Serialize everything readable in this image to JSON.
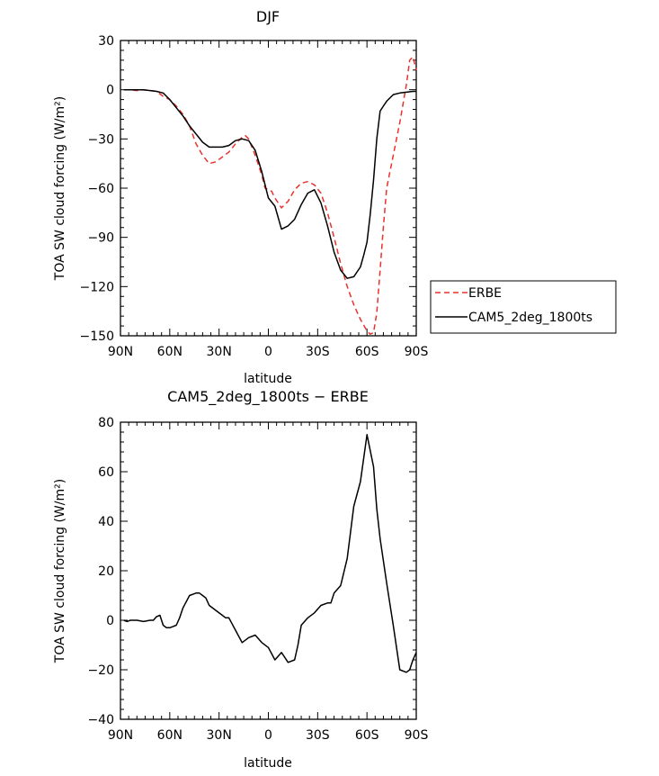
{
  "chart_data": [
    {
      "type": "line",
      "title": "DJF",
      "xlabel": "latitude",
      "ylabel": "TOA SW cloud forcing (W/m²)",
      "xlim": [
        90,
        -90
      ],
      "ylim": [
        -150,
        30
      ],
      "x_ticks": [
        90,
        60,
        30,
        0,
        -30,
        -60,
        -90
      ],
      "x_tick_labels": [
        "90N",
        "60N",
        "30N",
        "0",
        "30S",
        "60S",
        "90S"
      ],
      "y_ticks": [
        30,
        0,
        -30,
        -60,
        -90,
        -120,
        -150
      ],
      "y_tick_labels": [
        "30",
        "0",
        "−30",
        "−60",
        "−90",
        "−120",
        "−150"
      ],
      "legend_position": "outside-right",
      "series": [
        {
          "name": "ERBE",
          "color": "#e8322c",
          "dash": "dashed",
          "x": [
            88,
            84,
            80,
            76,
            72,
            68,
            64,
            60,
            56,
            52,
            48,
            44,
            40,
            36,
            32,
            28,
            24,
            20,
            16,
            14,
            12,
            8,
            4,
            2,
            0,
            -2,
            -4,
            -8,
            -12,
            -16,
            -20,
            -24,
            -28,
            -32,
            -36,
            -40,
            -44,
            -48,
            -52,
            -56,
            -60,
            -62,
            -64,
            -66,
            -68,
            -70,
            -72,
            -76,
            -80,
            -84,
            -86,
            -88,
            -90
          ],
          "values": [
            0,
            0,
            -0.5,
            0,
            -0.5,
            -1,
            -4,
            -6,
            -10,
            -15,
            -22,
            -33,
            -40,
            -45,
            -44,
            -41,
            -38,
            -33,
            -29,
            -28,
            -30,
            -40,
            -52,
            -60,
            -61,
            -62,
            -66,
            -72,
            -68,
            -61,
            -57,
            -56,
            -58,
            -63,
            -75,
            -90,
            -106,
            -120,
            -131,
            -140,
            -147,
            -149,
            -148,
            -136,
            -110,
            -84,
            -60,
            -40,
            -20,
            3,
            18,
            20,
            12
          ]
        },
        {
          "name": "CAM5_2deg_1800ts",
          "color": "#000000",
          "dash": "solid",
          "x": [
            88,
            84,
            80,
            76,
            72,
            68,
            64,
            60,
            56,
            52,
            48,
            44,
            40,
            36,
            32,
            28,
            24,
            20,
            16,
            12,
            8,
            4,
            0,
            -4,
            -8,
            -12,
            -16,
            -20,
            -24,
            -28,
            -32,
            -36,
            -40,
            -44,
            -48,
            -52,
            -56,
            -58,
            -60,
            -62,
            -64,
            -66,
            -68,
            -70,
            -72,
            -76,
            -80,
            -84,
            -88,
            -90
          ],
          "values": [
            0,
            0,
            0,
            0,
            -0.5,
            -1,
            -2,
            -6,
            -11,
            -16,
            -22,
            -27,
            -32,
            -35,
            -35,
            -35,
            -34,
            -31,
            -30,
            -31,
            -37,
            -50,
            -66,
            -71,
            -85,
            -83,
            -79,
            -70,
            -63,
            -61,
            -69,
            -83,
            -99,
            -110,
            -115,
            -114,
            -108,
            -101,
            -93,
            -76,
            -55,
            -30,
            -13,
            -10,
            -7,
            -3,
            -2,
            -1.5,
            -1,
            -1
          ]
        }
      ]
    },
    {
      "type": "line",
      "title": "CAM5_2deg_1800ts − ERBE",
      "xlabel": "latitude",
      "ylabel": "TOA SW cloud forcing (W/m²)",
      "xlim": [
        90,
        -90
      ],
      "ylim": [
        -40,
        80
      ],
      "x_ticks": [
        90,
        60,
        30,
        0,
        -30,
        -60,
        -90
      ],
      "x_tick_labels": [
        "90N",
        "60N",
        "30N",
        "0",
        "30S",
        "60S",
        "90S"
      ],
      "y_ticks": [
        80,
        60,
        40,
        20,
        0,
        -20,
        -40
      ],
      "y_tick_labels": [
        "80",
        "60",
        "40",
        "20",
        "0",
        "−20",
        "−40"
      ],
      "series": [
        {
          "color": "#000000",
          "dash": "solid",
          "x": [
            88,
            86,
            84,
            80,
            76,
            72,
            70,
            68,
            66,
            64,
            62,
            60,
            58,
            56,
            54,
            52,
            48,
            44,
            42,
            40,
            38,
            36,
            32,
            28,
            26,
            24,
            20,
            16,
            12,
            8,
            4,
            0,
            -4,
            -8,
            -10,
            -12,
            -16,
            -18,
            -20,
            -24,
            -28,
            -32,
            -36,
            -38,
            -40,
            -44,
            -48,
            -52,
            -56,
            -60,
            -64,
            -66,
            -68,
            -72,
            -76,
            -80,
            -84,
            -86,
            -88,
            -90
          ],
          "values": [
            0,
            -0.5,
            0,
            0,
            -0.5,
            0,
            0,
            1.5,
            2,
            -2,
            -3,
            -3,
            -2.5,
            -2,
            1,
            5,
            10,
            11,
            11,
            10,
            9,
            6,
            4,
            2,
            1,
            1,
            -4,
            -9,
            -7,
            -6,
            -9,
            -11,
            -16,
            -13,
            -15,
            -17,
            -16,
            -10,
            -2,
            1,
            3,
            6,
            7,
            7,
            11,
            14,
            25,
            46,
            56,
            75,
            62,
            45,
            33,
            15,
            -2,
            -20,
            -21,
            -20,
            -16,
            -13
          ]
        }
      ]
    }
  ],
  "legend": [
    {
      "label": "ERBE",
      "color": "#e8322c",
      "dash": "dashed"
    },
    {
      "label": "CAM5_2deg_1800ts",
      "color": "#000000",
      "dash": "solid"
    }
  ]
}
